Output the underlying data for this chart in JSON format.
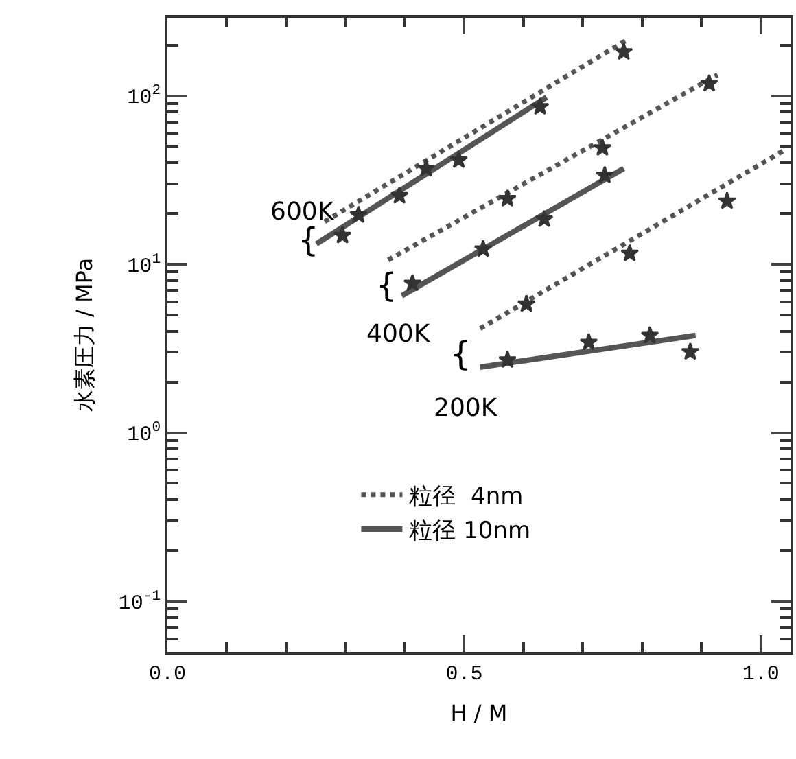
{
  "chart_data": {
    "type": "line",
    "xlabel": "H / M",
    "ylabel": "水素圧力 / MPa",
    "log": "y",
    "legend": "bottom",
    "xlim": [
      0,
      1.05
    ],
    "ylim": [
      0.05,
      290
    ],
    "xticks": [
      {
        "value": 0,
        "label": "0.0"
      },
      {
        "value": 0.5,
        "label": "0.5"
      },
      {
        "value": 1,
        "label": "1.0"
      }
    ],
    "yticks": [
      {
        "value": 0.1,
        "label": "10$^{-1}$"
      },
      {
        "value": 1,
        "label": "10$^{0}$"
      },
      {
        "value": 10,
        "label": "10$^{1}$"
      },
      {
        "value": 100,
        "label": "10$^{2}$"
      }
    ],
    "series": [
      {
        "name": "粒径  4nm",
        "color": "#555555",
        "line_style": "dotted",
        "x": [
          0.265,
          0.772
        ],
        "values": [
          17.9,
          212
        ]
      },
      {
        "name": "粒径 10nm",
        "color": "#555555",
        "line_style": "solid",
        "x": [
          0.251,
          0.639
        ],
        "values": [
          13.2,
          98
        ]
      },
      {
        "color": "#555555",
        "line_style": "dotted",
        "x": [
          0.372,
          0.927
        ],
        "values": [
          10.6,
          133
        ]
      },
      {
        "color": "#555555",
        "line_style": "solid",
        "x": [
          0.395,
          0.769
        ],
        "values": [
          6.5,
          37
        ]
      },
      {
        "color": "#555555",
        "line_style": "dotted",
        "x": [
          0.527,
          1.04
        ],
        "values": [
          4.15,
          47.6
        ]
      },
      {
        "color": "#555555",
        "line_style": "solid",
        "x": [
          0.527,
          0.89
        ],
        "values": [
          2.45,
          3.78
        ]
      },
      {
        "type": "scatter",
        "marker": "star",
        "color": "#333333",
        "x": [
          0.295,
          0.322,
          0.391,
          0.436,
          0.491,
          0.628,
          0.769
        ],
        "values": [
          14.8,
          19.6,
          25.5,
          37,
          41.5,
          86,
          182
        ]
      },
      {
        "type": "scatter",
        "marker": "star",
        "color": "#333333",
        "x": [
          0.413,
          0.532,
          0.573,
          0.635,
          0.733,
          0.737,
          0.913
        ],
        "values": [
          7.7,
          12.3,
          24.5,
          18.5,
          49,
          33.7,
          118
        ]
      },
      {
        "type": "scatter",
        "marker": "star",
        "color": "#333333",
        "x": [
          0.573,
          0.605,
          0.71,
          0.779,
          0.813,
          0.881,
          0.943
        ],
        "values": [
          2.7,
          5.8,
          3.44,
          11.6,
          3.78,
          3.02,
          23.7
        ]
      }
    ],
    "annotations": [
      "600K",
      "400K",
      "200K",
      "{",
      "{",
      "{"
    ]
  }
}
